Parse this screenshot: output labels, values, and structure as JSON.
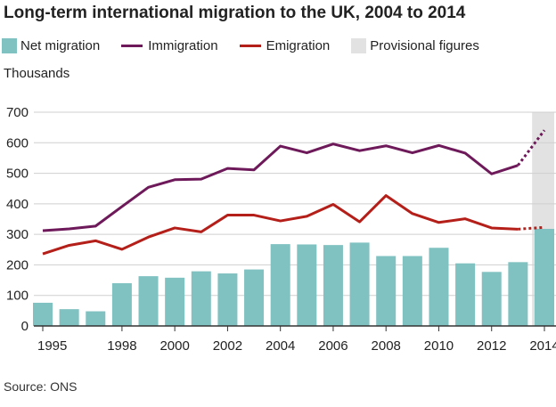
{
  "title": "Long-term international migration to the UK, 2004 to 2014",
  "unit_label": "Thousands",
  "source": "Source: ONS",
  "legend": [
    {
      "label": "Net migration",
      "kind": "box",
      "color": "#80c1c1"
    },
    {
      "label": "Immigration",
      "kind": "line",
      "color": "#6e1a5a"
    },
    {
      "label": "Emigration",
      "kind": "line",
      "color": "#b51f1a"
    },
    {
      "label": "Provisional figures",
      "kind": "box",
      "color": "#e2e2e2"
    }
  ],
  "chart_data": {
    "type": "bar",
    "title": "Long-term international migration to the UK, 2004 to 2014",
    "ylabel": "Thousands",
    "ylim": [
      0,
      700
    ],
    "y_ticks": [
      0,
      100,
      200,
      300,
      400,
      500,
      600,
      700
    ],
    "x_tick_labels": [
      "1995",
      "1998",
      "2000",
      "2002",
      "2004",
      "2006",
      "2008",
      "2010",
      "2012",
      "2014"
    ],
    "categories": [
      "1995",
      "1996",
      "1997",
      "1998",
      "1999",
      "2000",
      "2001",
      "2002",
      "2003",
      "2004",
      "2005",
      "2006",
      "2007",
      "2008",
      "2009",
      "2010",
      "2011",
      "2012",
      "2013",
      "2014"
    ],
    "grid": true,
    "provisional_category": "2014",
    "series": [
      {
        "name": "Net migration",
        "type": "bar",
        "color": "#80c1c1",
        "values": [
          76,
          55,
          48,
          140,
          163,
          158,
          179,
          172,
          185,
          268,
          267,
          265,
          273,
          229,
          229,
          256,
          205,
          177,
          209,
          318
        ]
      },
      {
        "name": "Immigration",
        "type": "line",
        "color": "#6e1a5a",
        "values": [
          312,
          318,
          327,
          391,
          454,
          479,
          481,
          516,
          511,
          589,
          567,
          596,
          574,
          590,
          567,
          591,
          566,
          498,
          526,
          641
        ]
      },
      {
        "name": "Emigration",
        "type": "line",
        "color": "#b51f1a",
        "values": [
          236,
          264,
          279,
          251,
          291,
          321,
          308,
          363,
          363,
          344,
          359,
          398,
          341,
          427,
          368,
          339,
          351,
          321,
          317,
          323
        ]
      }
    ]
  }
}
